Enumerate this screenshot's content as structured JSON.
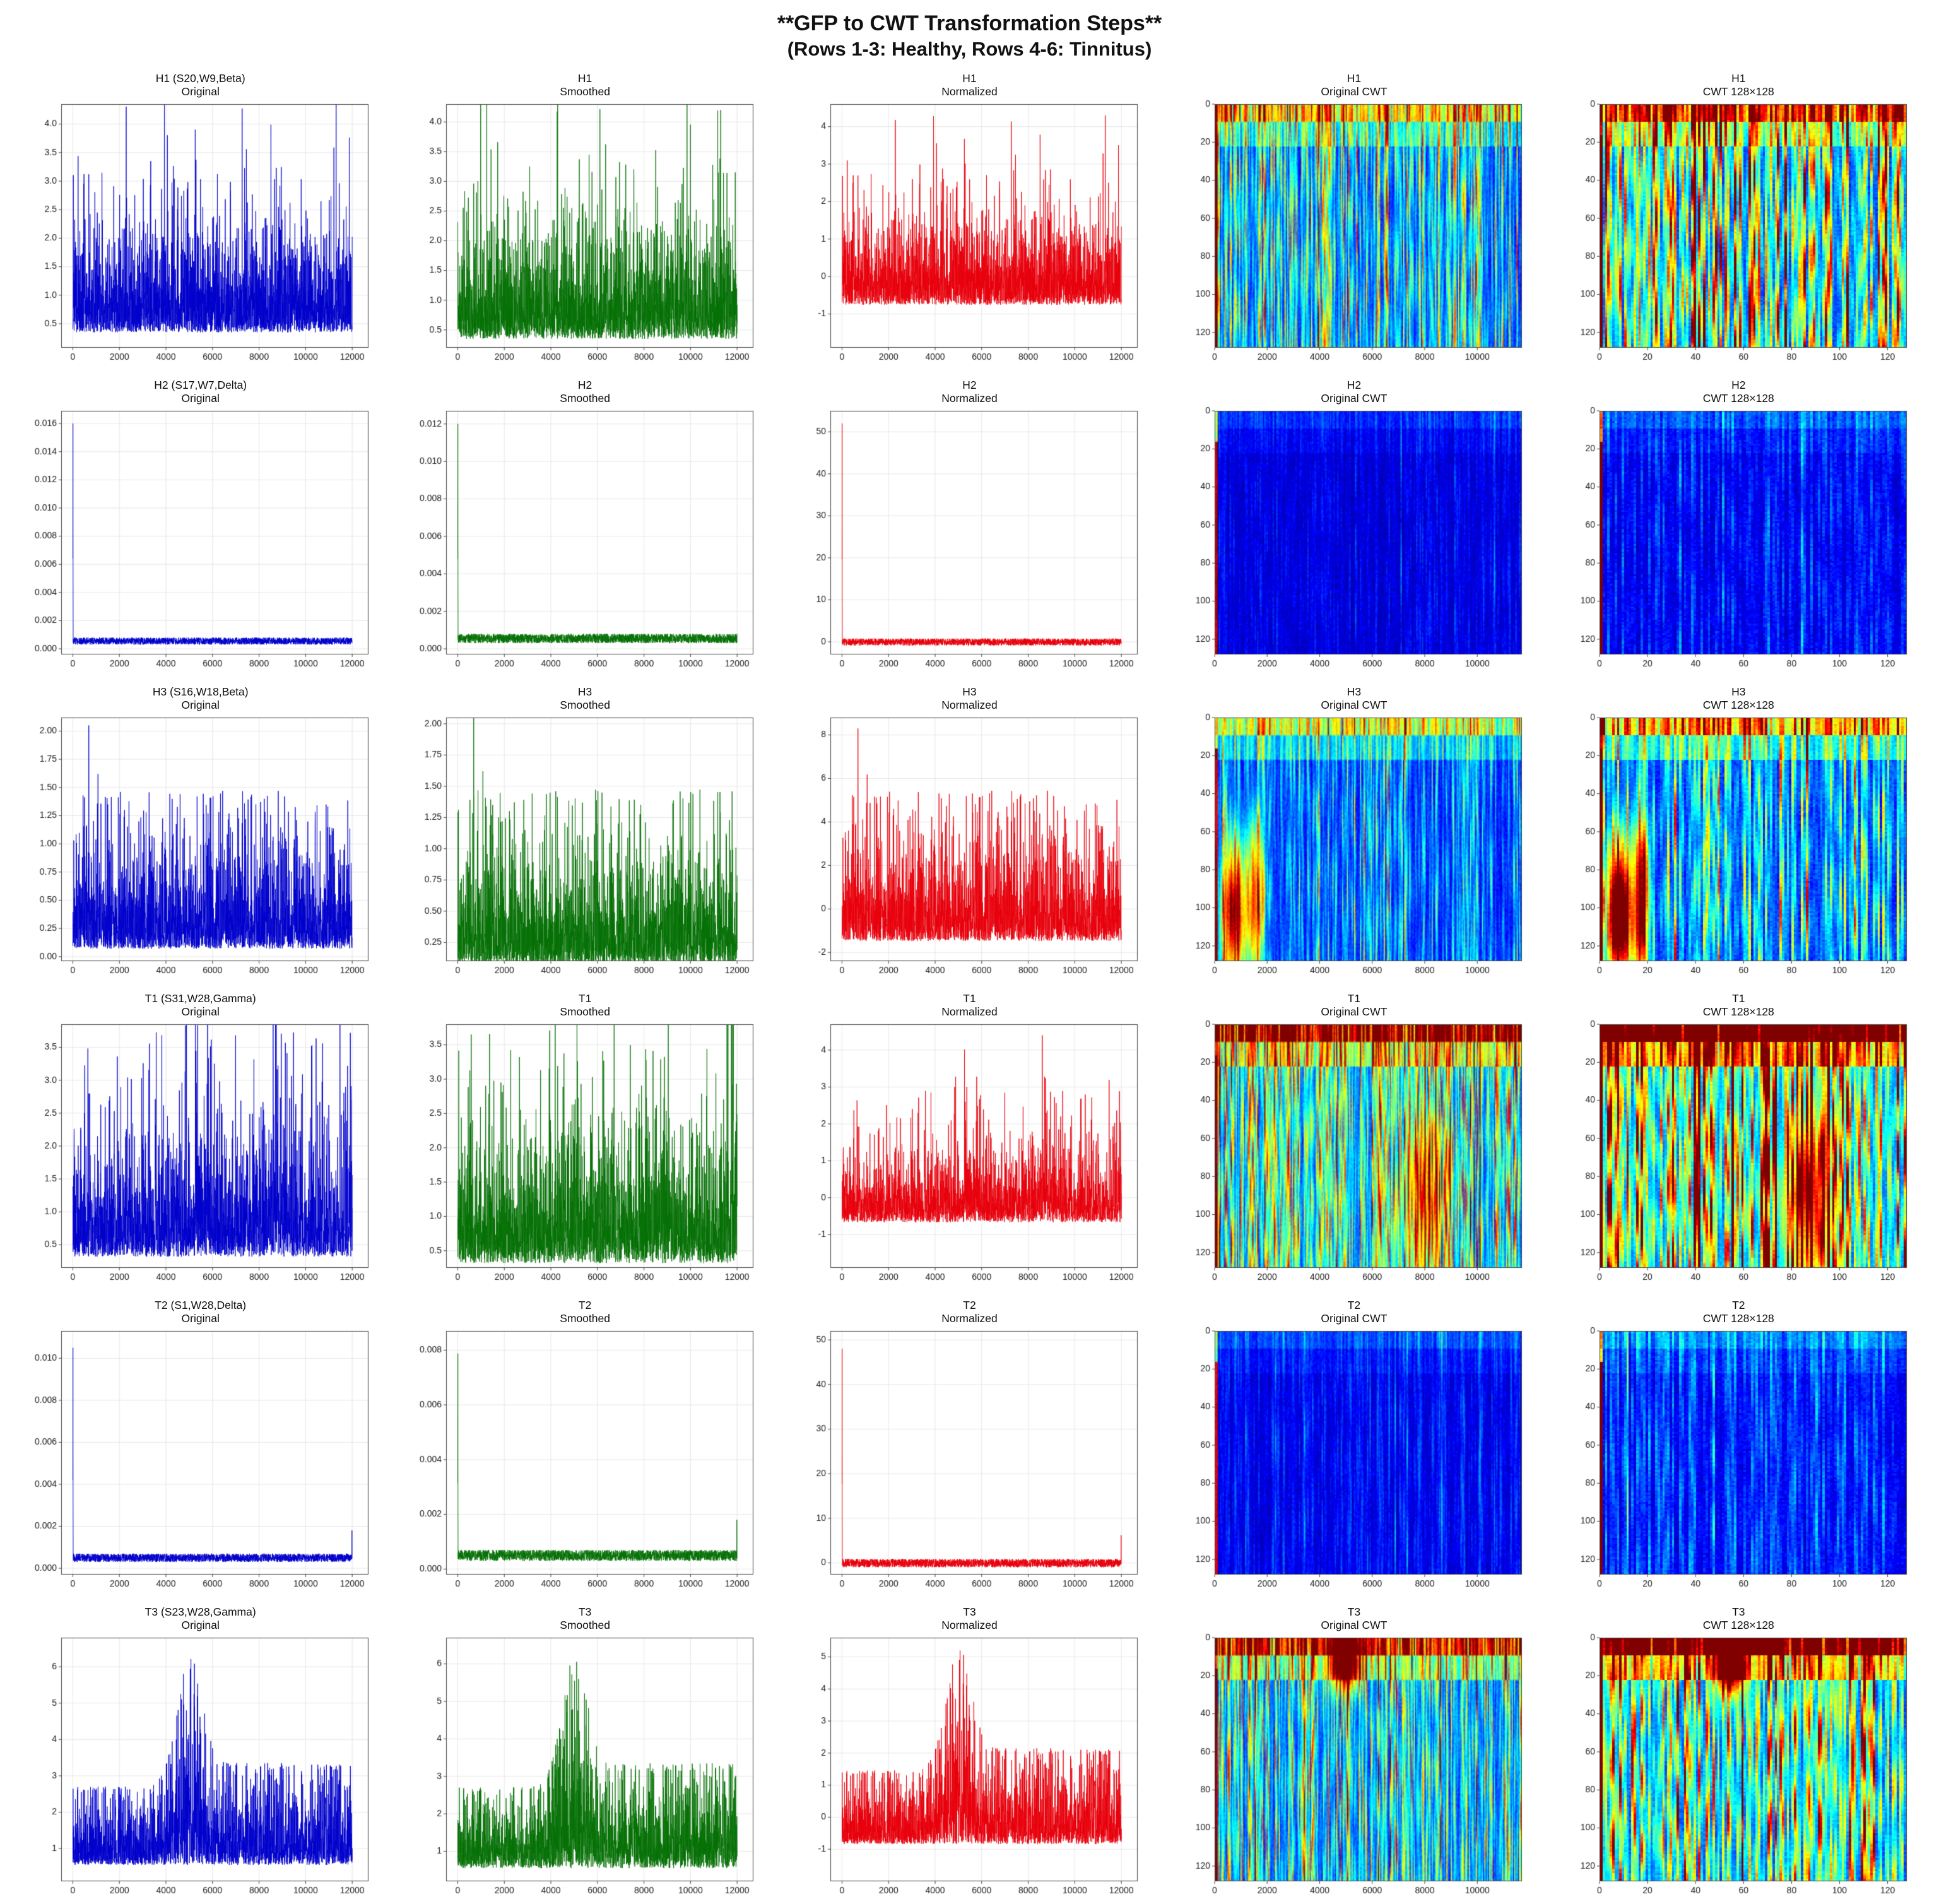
{
  "header": {
    "title": "**GFP to CWT Transformation Steps**",
    "subtitle": "(Rows 1-3: Healthy, Rows 4-6: Tinnitus)"
  },
  "chart_data": {
    "type": "heatmap",
    "description": "6x5 panel figure: GFP signals (Original blue, Smoothed green, Normalized red line plots) and CWT scalogram heatmaps (Original CWT, CWT 128x128) for 3 Healthy (H1-H3) and 3 Tinnitus (T1-T3) subjects",
    "panel_grid": {
      "rows": 6,
      "cols": 5
    },
    "x_axes": {
      "line": {
        "ticks": [
          0,
          2000,
          4000,
          6000,
          8000,
          10000,
          12000
        ],
        "lim": [
          -500,
          12700
        ],
        "data_max": 12000
      },
      "original_cwt": {
        "ticks": [
          0,
          2000,
          4000,
          6000,
          8000,
          10000
        ],
        "lim": [
          0,
          11700
        ]
      },
      "cwt128": {
        "ticks": [
          0,
          20,
          40,
          60,
          80,
          100,
          120
        ],
        "lim": [
          0,
          128
        ]
      }
    },
    "cwt_yticks": [
      0,
      20,
      40,
      60,
      80,
      100,
      120
    ],
    "columns": [
      {
        "key": "original",
        "label": "Original",
        "type": "line",
        "xaxis": "line",
        "color": "#0000cc"
      },
      {
        "key": "smoothed",
        "label": "Smoothed",
        "type": "line",
        "xaxis": "line",
        "color": "#067106"
      },
      {
        "key": "normalized",
        "label": "Normalized",
        "type": "line",
        "xaxis": "line",
        "color": "#e8000b"
      },
      {
        "key": "original_cwt",
        "label": "Original CWT",
        "type": "heatmap",
        "xaxis": "original_cwt",
        "res": 256,
        "boost": 1.0,
        "smooth": true
      },
      {
        "key": "cwt128",
        "label": "CWT 128×128",
        "type": "heatmap",
        "xaxis": "cwt128",
        "res": 128,
        "boost": 1.3,
        "smooth": false
      }
    ],
    "rows": [
      {
        "id": "H1",
        "title": "H1 (S20,W9,Beta)",
        "group": "Healthy",
        "seed": 11,
        "signal": {
          "kind": "noisy",
          "base": 0.35,
          "scale": 0.62,
          "cap": 3.8,
          "bumps": [],
          "spikes": [],
          "step": null,
          "norm_max": 4.3
        },
        "axes": {
          "original": {
            "yticks": [
              0.5,
              1.0,
              1.5,
              2.0,
              2.5,
              3.0,
              3.5,
              4.0
            ],
            "ylim": [
              0.08,
              4.35
            ],
            "decimals": 1
          },
          "smoothed": {
            "yticks": [
              0.5,
              1.0,
              1.5,
              2.0,
              2.5,
              3.0,
              3.5,
              4.0
            ],
            "ylim": [
              0.2,
              4.3
            ],
            "decimals": 1
          },
          "normalized": {
            "yticks": [
              -1,
              0,
              1,
              2,
              3,
              4
            ],
            "ylim": [
              -1.9,
              4.6
            ],
            "decimals": 0
          }
        },
        "heat": {
          "bg": 0.07,
          "streak": 0.8,
          "top_band": 0.5,
          "left_col": 0.7,
          "hotspots": []
        }
      },
      {
        "id": "H2",
        "title": "H2 (S17,W7,Delta)",
        "group": "Healthy",
        "seed": 22,
        "signal": {
          "kind": "delta",
          "peak": 0.016,
          "noise_base": 0.0003,
          "noise_amp": 0.0005,
          "end_spike": 0,
          "norm_max": 52
        },
        "axes": {
          "original": {
            "yticks": [
              0.0,
              0.002,
              0.004,
              0.006,
              0.008,
              0.01,
              0.012,
              0.014,
              0.016
            ],
            "ylim": [
              -0.0004,
              0.0169
            ],
            "decimals": 3
          },
          "smoothed": {
            "yticks": [
              0.0,
              0.002,
              0.004,
              0.006,
              0.008,
              0.01,
              0.012
            ],
            "ylim": [
              -0.0003,
              0.0127
            ],
            "decimals": 3
          },
          "normalized": {
            "yticks": [
              0,
              10,
              20,
              30,
              40,
              50
            ],
            "ylim": [
              -3,
              55
            ],
            "decimals": 0
          }
        },
        "heat": {
          "bg": 0.045,
          "streak": 0.15,
          "top_band": 0.1,
          "left_col": 0.8,
          "hotspots": []
        }
      },
      {
        "id": "H3",
        "title": "H3 (S16,W18,Beta)",
        "group": "Healthy",
        "seed": 33,
        "signal": {
          "kind": "noisy",
          "base": 0.07,
          "scale": 0.3,
          "cap": 1.3,
          "bumps": [],
          "spikes": [
            {
              "x": 0.057,
              "v": 2.05
            },
            {
              "x": 0.09,
              "v": 1.62
            },
            {
              "x": 0.125,
              "v": 1.35
            },
            {
              "x": 0.185,
              "v": 1.3
            },
            {
              "x": 0.49,
              "v": 1.1
            },
            {
              "x": 0.655,
              "v": 1.35
            },
            {
              "x": 0.75,
              "v": 1.1
            }
          ],
          "step": null,
          "norm_max": 8.3
        },
        "axes": {
          "original": {
            "yticks": [
              0.0,
              0.25,
              0.5,
              0.75,
              1.0,
              1.25,
              1.5,
              1.75,
              2.0
            ],
            "ylim": [
              -0.04,
              2.12
            ],
            "decimals": 2
          },
          "smoothed": {
            "yticks": [
              0.25,
              0.5,
              0.75,
              1.0,
              1.25,
              1.5,
              1.75,
              2.0
            ],
            "ylim": [
              0.1,
              2.05
            ],
            "decimals": 2
          },
          "normalized": {
            "yticks": [
              -2,
              0,
              2,
              4,
              6,
              8
            ],
            "ylim": [
              -2.4,
              8.8
            ],
            "decimals": 0
          }
        },
        "heat": {
          "bg": 0.07,
          "streak": 0.45,
          "top_band": 0.5,
          "left_col": 0.75,
          "hotspots": [
            {
              "x": 0.06,
              "y": 0.8,
              "rx": 0.04,
              "ry": 0.3,
              "amp": 0.8
            },
            {
              "x": 0.13,
              "y": 0.75,
              "rx": 0.025,
              "ry": 0.35,
              "amp": 0.6
            }
          ]
        }
      },
      {
        "id": "T1",
        "title": "T1 (S31,W28,Gamma)",
        "group": "Tinnitus",
        "seed": 44,
        "signal": {
          "kind": "noisy",
          "base": 0.32,
          "scale": 0.55,
          "cap": 3.1,
          "bumps": [
            {
              "c": 0.45,
              "w": 0.06,
              "a": 0.45
            },
            {
              "c": 0.72,
              "w": 0.05,
              "a": 0.5
            },
            {
              "c": 0.99,
              "w": 0.02,
              "a": 0.6
            }
          ],
          "spikes": [],
          "step": null,
          "norm_max": 4.4
        },
        "axes": {
          "original": {
            "yticks": [
              0.5,
              1.0,
              1.5,
              2.0,
              2.5,
              3.0,
              3.5
            ],
            "ylim": [
              0.15,
              3.85
            ],
            "decimals": 1
          },
          "smoothed": {
            "yticks": [
              0.5,
              1.0,
              1.5,
              2.0,
              2.5,
              3.0,
              3.5
            ],
            "ylim": [
              0.25,
              3.8
            ],
            "decimals": 1
          },
          "normalized": {
            "yticks": [
              -1,
              0,
              1,
              2,
              3,
              4
            ],
            "ylim": [
              -1.9,
              4.7
            ],
            "decimals": 0
          }
        },
        "heat": {
          "bg": 0.1,
          "streak": 0.9,
          "top_band": 0.9,
          "left_col": 0.75,
          "hotspots": [
            {
              "x": 0.68,
              "y": 0.7,
              "rx": 0.07,
              "ry": 0.35,
              "amp": 0.45
            }
          ]
        }
      },
      {
        "id": "T2",
        "title": "T2 (S1,W28,Delta)",
        "group": "Tinnitus",
        "seed": 55,
        "signal": {
          "kind": "delta",
          "peak": 0.0105,
          "noise_base": 0.0003,
          "noise_amp": 0.0004,
          "end_spike": 0.0018,
          "norm_max": 48
        },
        "axes": {
          "original": {
            "yticks": [
              0.0,
              0.002,
              0.004,
              0.006,
              0.008,
              0.01
            ],
            "ylim": [
              -0.0003,
              0.0113
            ],
            "decimals": 3
          },
          "smoothed": {
            "yticks": [
              0.0,
              0.002,
              0.004,
              0.006,
              0.008
            ],
            "ylim": [
              -0.0002,
              0.0087
            ],
            "decimals": 3
          },
          "normalized": {
            "yticks": [
              0,
              10,
              20,
              30,
              40,
              50
            ],
            "ylim": [
              -2.6,
              52
            ],
            "decimals": 0
          }
        },
        "heat": {
          "bg": 0.05,
          "streak": 0.2,
          "top_band": 0.12,
          "left_col": 0.8,
          "hotspots": []
        }
      },
      {
        "id": "T3",
        "title": "T3 (S23,W28,Gamma)",
        "group": "Tinnitus",
        "seed": 66,
        "signal": {
          "kind": "noisy",
          "base": 0.55,
          "scale": 0.6,
          "cap": 2.0,
          "bumps": [
            {
              "c": 0.415,
              "w": 0.045,
              "a": 1.55
            }
          ],
          "spikes": [],
          "step": {
            "at": 0.43,
            "amp": 0.3
          },
          "norm_max": 5.2
        },
        "axes": {
          "original": {
            "yticks": [
              1,
              2,
              3,
              4,
              5,
              6
            ],
            "ylim": [
              0.1,
              6.8
            ],
            "decimals": 0
          },
          "smoothed": {
            "yticks": [
              1,
              2,
              3,
              4,
              5,
              6
            ],
            "ylim": [
              0.2,
              6.7
            ],
            "decimals": 0
          },
          "normalized": {
            "yticks": [
              -1,
              0,
              1,
              2,
              3,
              4,
              5
            ],
            "ylim": [
              -2.0,
              5.6
            ],
            "decimals": 0
          }
        },
        "heat": {
          "bg": 0.09,
          "streak": 0.75,
          "top_band": 0.8,
          "left_col": 0.75,
          "hotspots": [
            {
              "x": 0.42,
              "y": 0.1,
              "rx": 0.05,
              "ry": 0.12,
              "amp": 0.8
            }
          ]
        }
      }
    ]
  }
}
